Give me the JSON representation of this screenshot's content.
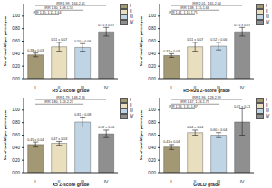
{
  "chart_data": [
    {
      "type": "bar",
      "x_label": "R5 Z-score grade",
      "y_label": "No. of total AE per patient-year",
      "categories": [
        "I",
        "II",
        "III",
        "IV"
      ],
      "values": [
        0.38,
        0.51,
        0.5,
        0.75
      ],
      "errors": [
        0.03,
        0.07,
        0.06,
        0.07
      ],
      "value_labels": [
        "0.38 ± 0.03",
        "0.51 ± 0.07",
        "0.50 ± 0.06",
        "0.75 ± 0.07"
      ],
      "colors": [
        "#a39874",
        "#e9dfbf",
        "#bfd5e6",
        "#8f8f8f"
      ],
      "ylim": [
        0,
        1.2
      ],
      "yticks": [
        {
          "value": 0,
          "label": "0.00"
        },
        {
          "value": 0.2,
          "label": "0.20"
        },
        {
          "value": 0.4,
          "label": "0.40"
        },
        {
          "value": 0.6,
          "label": "0.60"
        },
        {
          "value": 0.8,
          "label": "0.80"
        },
        {
          "value": 1,
          "label": "1.00"
        }
      ],
      "grid": false,
      "legend": "right",
      "annotations": [
        {
          "text": "IRR 1.99, 1.64-2.41",
          "from": "I",
          "to": "IV"
        },
        {
          "text": "IRR 1.30, 1.08-1.57",
          "from": "I",
          "to": "III"
        },
        {
          "text": "IRR 1.35, 1.11-1.64",
          "from": "I",
          "to": "II"
        }
      ]
    },
    {
      "type": "bar",
      "x_label": "R5-R20 Z-score grade",
      "y_label": "No. of total AE per patient-year",
      "categories": [
        "I",
        "II",
        "III",
        "IV"
      ],
      "values": [
        0.37,
        0.51,
        0.52,
        0.75
      ],
      "errors": [
        0.03,
        0.07,
        0.06,
        0.07
      ],
      "value_labels": [
        "0.37 ± 0.03",
        "0.51 ± 0.07",
        "0.52 ± 0.06",
        "0.75 ± 0.07"
      ],
      "colors": [
        "#a39874",
        "#e9dfbf",
        "#bfd5e6",
        "#8f8f8f"
      ],
      "ylim": [
        0,
        1.2
      ],
      "yticks": [
        {
          "value": 0,
          "label": "0.00"
        },
        {
          "value": 0.2,
          "label": "0.20"
        },
        {
          "value": 0.4,
          "label": "0.40"
        },
        {
          "value": 0.6,
          "label": "0.60"
        },
        {
          "value": 0.8,
          "label": "0.80"
        },
        {
          "value": 1,
          "label": "1.00"
        }
      ],
      "grid": false,
      "legend": "right",
      "annotations": [
        {
          "text": "IRR 2.01, 1.65-2.44",
          "from": "I",
          "to": "IV"
        },
        {
          "text": "IRR 1.38, 1.15-1.66",
          "from": "I",
          "to": "III"
        },
        {
          "text": "IRR 1.41, 1.16-1.71",
          "from": "I",
          "to": "II"
        }
      ]
    },
    {
      "type": "bar",
      "x_label": "X5 Z-score grade",
      "y_label": "No. of total AE per patient-year",
      "categories": [
        "I",
        "II",
        "III",
        "IV"
      ],
      "values": [
        0.45,
        0.47,
        0.81,
        0.62
      ],
      "errors": [
        0.04,
        0.03,
        0.08,
        0.06
      ],
      "value_labels": [
        "0.45 ± 0.04",
        "0.47 ± 0.03",
        "0.81 ± 0.08",
        "0.62 ± 0.06"
      ],
      "colors": [
        "#a39874",
        "#e9dfbf",
        "#bfd5e6",
        "#8f8f8f"
      ],
      "ylim": [
        0,
        1.2
      ],
      "yticks": [
        {
          "value": 0,
          "label": "0.00"
        },
        {
          "value": 0.2,
          "label": "0.20"
        },
        {
          "value": 0.4,
          "label": "0.40"
        },
        {
          "value": 0.6,
          "label": "0.60"
        },
        {
          "value": 0.8,
          "label": "0.80"
        },
        {
          "value": 1,
          "label": "1.00"
        }
      ],
      "grid": false,
      "legend": "right",
      "annotations": [
        {
          "text": "IRR 1.79, 1.48-2.16",
          "from": "I",
          "to": "IV"
        },
        {
          "text": "IRR 1.80, 1.43-2.27",
          "from": "I",
          "to": "III"
        }
      ]
    },
    {
      "type": "bar",
      "x_label": "GOLD grade",
      "y_label": "No. of total AE per patient-year",
      "categories": [
        "I",
        "II",
        "III",
        "IV"
      ],
      "values": [
        0.41,
        0.64,
        0.6,
        0.81
      ],
      "errors": [
        0.04,
        0.04,
        0.04,
        0.21
      ],
      "value_labels": [
        "0.41 ± 0.04",
        "0.64 ± 0.04",
        "0.60 ± 0.04",
        "0.81 ± 0.21"
      ],
      "colors": [
        "#a39874",
        "#e9dfbf",
        "#bfd5e6",
        "#8f8f8f"
      ],
      "ylim": [
        0,
        1.2
      ],
      "yticks": [
        {
          "value": 0,
          "label": "0.00"
        },
        {
          "value": 0.2,
          "label": "0.20"
        },
        {
          "value": 0.4,
          "label": "0.40"
        },
        {
          "value": 0.6,
          "label": "0.60"
        },
        {
          "value": 0.8,
          "label": "0.80"
        },
        {
          "value": 1,
          "label": "1.00"
        }
      ],
      "grid": false,
      "legend": "right",
      "annotations": [
        {
          "text": "IRR 1.96, 1.28-2.99",
          "from": "I",
          "to": "IV"
        },
        {
          "text": "IRR 1.47, 1.24-1.75",
          "from": "I",
          "to": "III"
        },
        {
          "text": "IRR 1.56, 1.31-1.87",
          "from": "I",
          "to": "II"
        }
      ]
    }
  ]
}
